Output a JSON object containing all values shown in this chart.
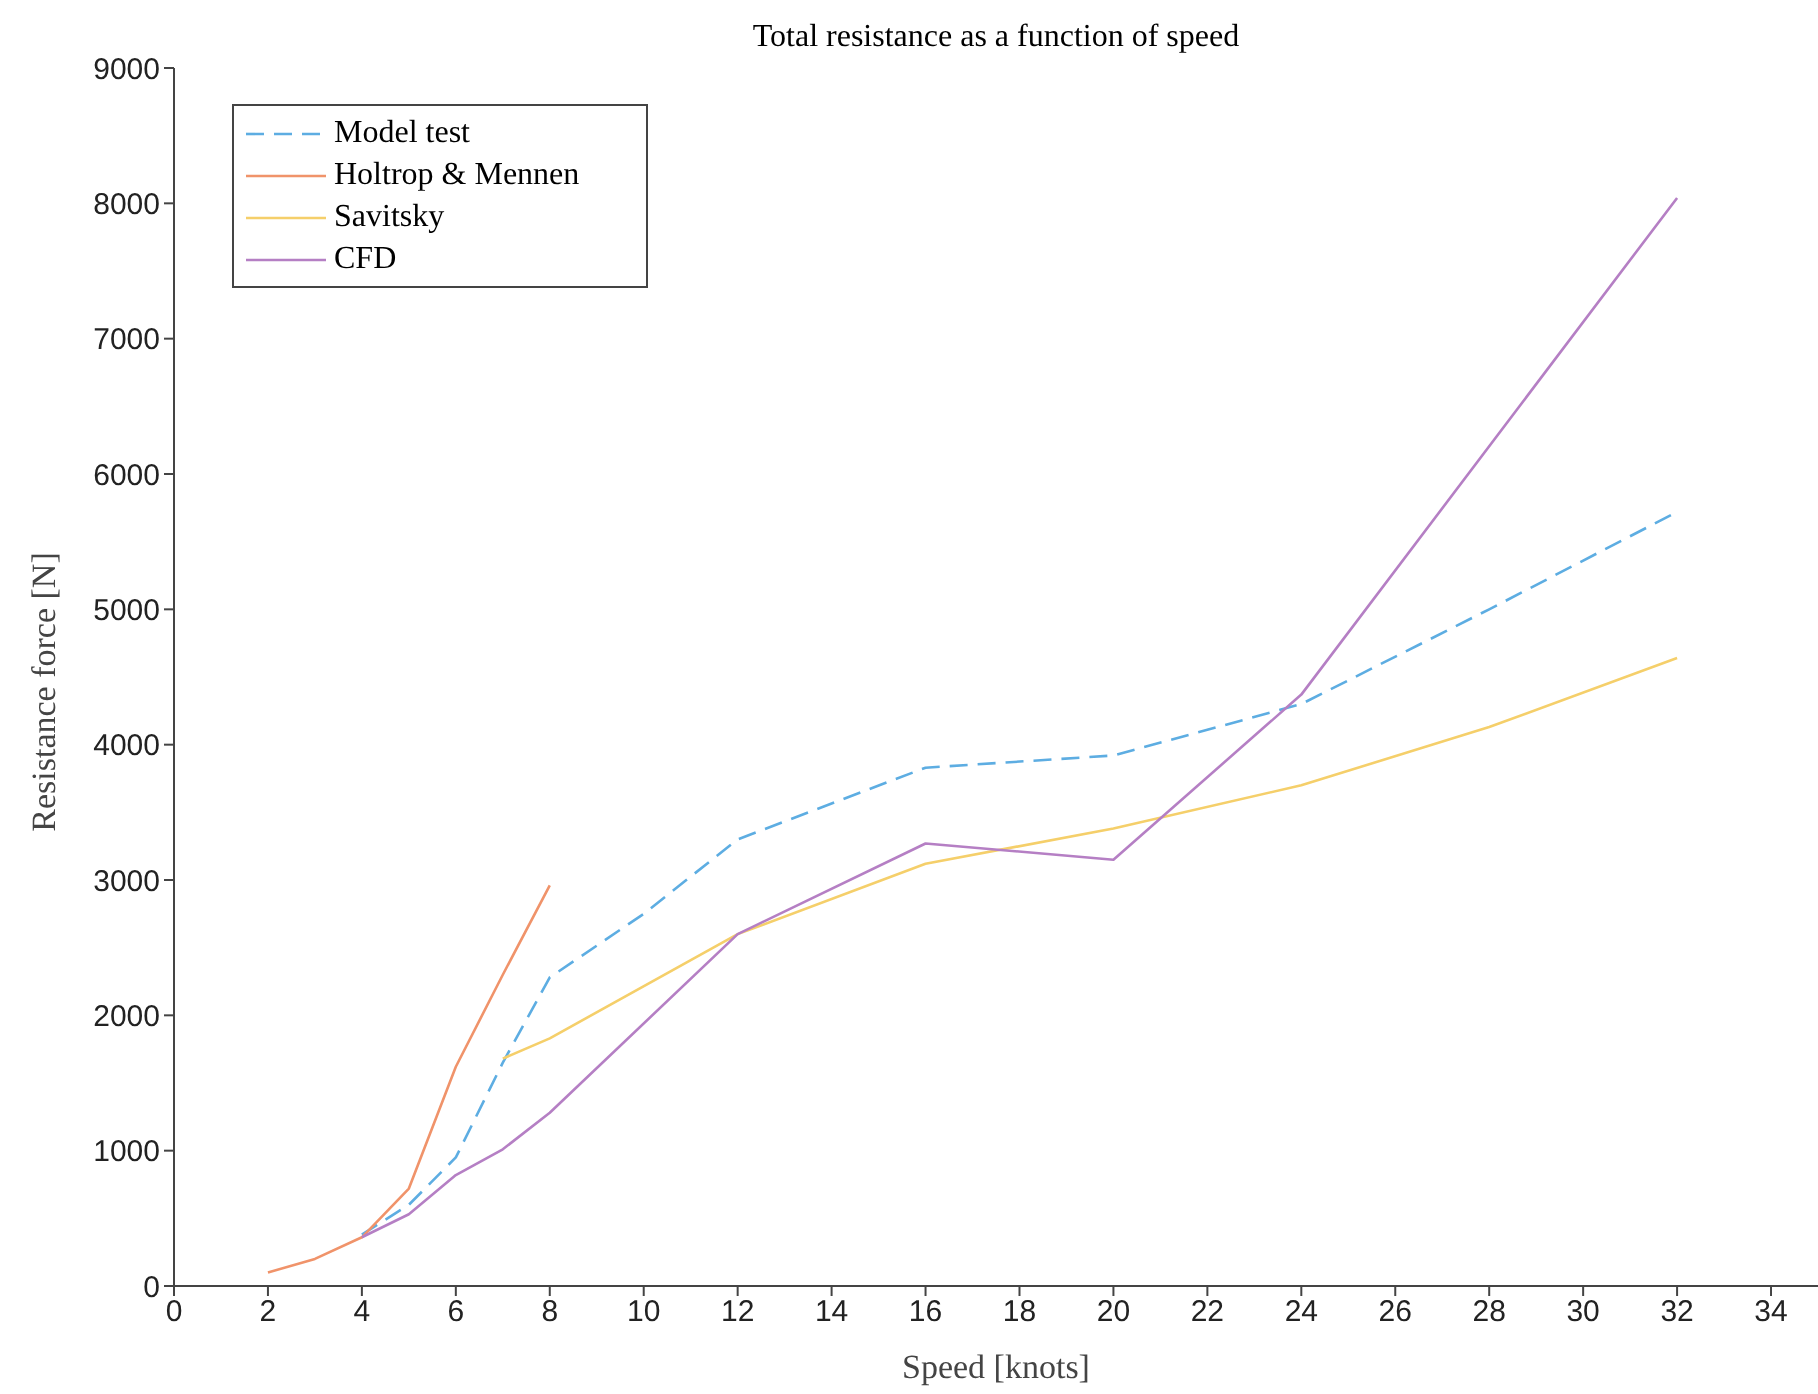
{
  "chart_data": {
    "type": "line",
    "title": "Total resistance as a function of speed",
    "xlabel": "Speed [knots]",
    "ylabel": "Resistance force [N]",
    "xlim": [
      0,
      35
    ],
    "xticks": [
      0,
      2,
      4,
      6,
      8,
      10,
      12,
      14,
      16,
      18,
      20,
      22,
      24,
      26,
      28,
      30,
      32,
      34
    ],
    "ylim": [
      0,
      9000
    ],
    "yticks": [
      0,
      1000,
      2000,
      3000,
      4000,
      5000,
      6000,
      7000,
      8000,
      9000
    ],
    "grid": false,
    "legend": "top left",
    "marker": "none",
    "series": [
      {
        "name": "Model test",
        "color": "#5dade2",
        "line_style": "dashed",
        "x": [
          4,
          5,
          6,
          7,
          8,
          10,
          12,
          16,
          20,
          24,
          28,
          32
        ],
        "values": [
          380,
          600,
          950,
          1650,
          2280,
          2750,
          3300,
          3830,
          3920,
          4300,
          5000,
          5720
        ]
      },
      {
        "name": "Holtrop & Mennen",
        "color": "#f0936a",
        "line_style": "solid",
        "x": [
          2,
          3,
          4,
          5,
          6,
          7,
          8
        ],
        "values": [
          100,
          200,
          360,
          720,
          1620,
          2300,
          2960
        ]
      },
      {
        "name": "Savitsky",
        "color": "#f5cf6a",
        "line_style": "solid",
        "x": [
          7,
          8,
          12,
          16,
          20,
          24,
          28,
          32
        ],
        "values": [
          1680,
          1830,
          2600,
          3120,
          3380,
          3700,
          4130,
          4640
        ]
      },
      {
        "name": "CFD",
        "color": "#b57fc4",
        "line_style": "solid",
        "x": [
          4,
          5,
          6,
          7,
          8,
          12,
          16,
          20,
          24,
          32
        ],
        "values": [
          360,
          530,
          820,
          1010,
          1280,
          2600,
          3270,
          3150,
          4370,
          8040
        ]
      }
    ]
  }
}
